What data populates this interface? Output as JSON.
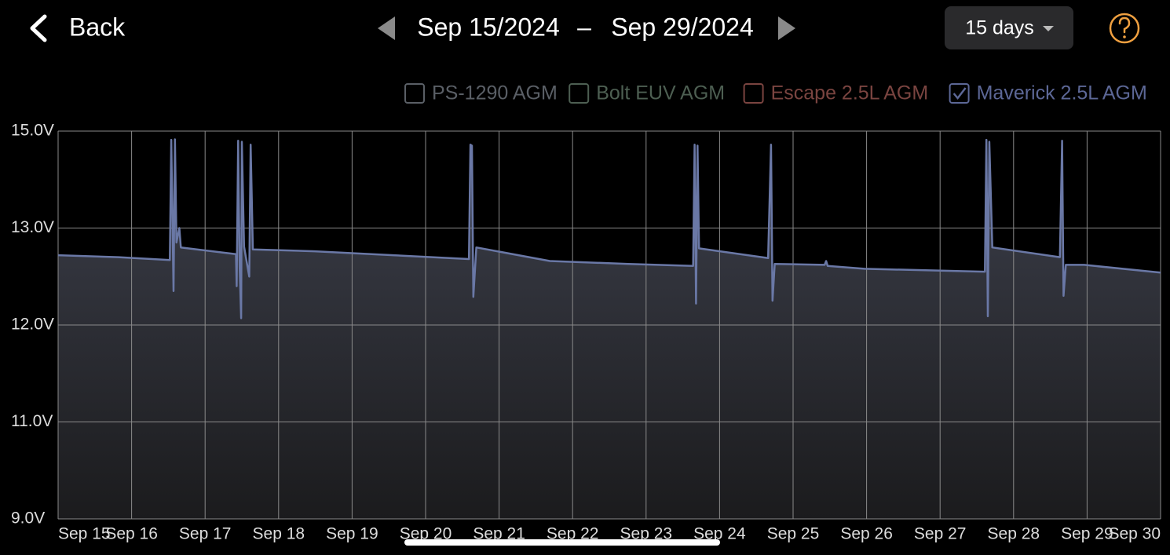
{
  "header": {
    "back": "Back",
    "start_date": "Sep 15/2024",
    "separator": "–",
    "end_date": "Sep 29/2024",
    "range": "15 days"
  },
  "toggles": [
    {
      "name": "PS-1290 AGM",
      "color": "#5a5f66",
      "checked": false
    },
    {
      "name": "Bolt EUV AGM",
      "color": "#4d5f52",
      "checked": false
    },
    {
      "name": "Escape 2.5L AGM",
      "color": "#7a4440",
      "checked": false
    },
    {
      "name": "Maverick 2.5L AGM",
      "color": "#5c6796",
      "checked": true
    }
  ],
  "chart_data": {
    "type": "line",
    "grid": true,
    "xlim": [
      15,
      30
    ],
    "xticks": [
      {
        "value": 15,
        "label": "Sep 15"
      },
      {
        "value": 16,
        "label": "Sep 16"
      },
      {
        "value": 17,
        "label": "Sep 17"
      },
      {
        "value": 18,
        "label": "Sep 18"
      },
      {
        "value": 19,
        "label": "Sep 19"
      },
      {
        "value": 20,
        "label": "Sep 20"
      },
      {
        "value": 21,
        "label": "Sep 21"
      },
      {
        "value": 22,
        "label": "Sep 22"
      },
      {
        "value": 23,
        "label": "Sep 23"
      },
      {
        "value": 24,
        "label": "Sep 24"
      },
      {
        "value": 25,
        "label": "Sep 25"
      },
      {
        "value": 26,
        "label": "Sep 26"
      },
      {
        "value": 27,
        "label": "Sep 27"
      },
      {
        "value": 28,
        "label": "Sep 28"
      },
      {
        "value": 29,
        "label": "Sep 29"
      },
      {
        "value": 30,
        "label": "Sep 30"
      }
    ],
    "ylim": [
      9,
      15
    ],
    "yticks": [
      {
        "value": 9,
        "label": "9.0V"
      },
      {
        "value": 11,
        "label": "11.0V"
      },
      {
        "value": 12,
        "label": "12.0V"
      },
      {
        "value": 13,
        "label": "13.0V"
      },
      {
        "value": 15,
        "label": "15.0V"
      }
    ],
    "x": [
      15.0,
      15.82,
      16.52,
      16.54,
      16.57,
      16.59,
      16.61,
      16.65,
      16.67,
      17.42,
      17.43,
      17.45,
      17.47,
      17.49,
      17.5,
      17.53,
      17.6,
      17.62,
      17.65,
      18.49,
      19.56,
      20.59,
      20.61,
      20.63,
      20.65,
      20.69,
      21.69,
      22.76,
      23.64,
      23.66,
      23.68,
      23.7,
      23.72,
      24.66,
      24.7,
      24.72,
      24.75,
      25.43,
      25.45,
      25.47,
      25.97,
      27.61,
      27.63,
      27.65,
      27.67,
      27.71,
      28.63,
      28.66,
      28.68,
      28.71,
      28.96,
      30.0
    ],
    "series": [
      {
        "name": "Maverick 2.5L AGM",
        "color": "#6a78a6",
        "values": [
          12.72,
          12.7,
          12.67,
          14.82,
          12.35,
          14.83,
          12.85,
          13.0,
          12.8,
          12.73,
          12.4,
          14.8,
          12.6,
          12.07,
          14.78,
          12.81,
          12.5,
          14.72,
          12.78,
          12.76,
          12.72,
          12.68,
          14.72,
          14.7,
          12.29,
          12.8,
          12.66,
          12.63,
          12.61,
          14.72,
          12.22,
          14.7,
          12.79,
          12.69,
          14.72,
          12.25,
          12.63,
          12.62,
          12.66,
          12.61,
          12.58,
          12.55,
          14.82,
          12.09,
          14.78,
          12.8,
          12.7,
          14.8,
          12.3,
          12.62,
          12.62,
          12.54
        ]
      }
    ]
  }
}
